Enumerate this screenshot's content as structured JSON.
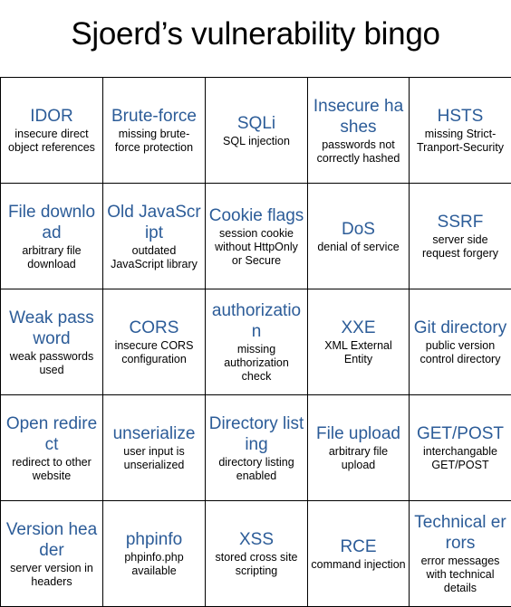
{
  "title": "Sjoerd’s vulnerability bingo",
  "colors": {
    "heading": "#2c5c98",
    "description": "#000000",
    "grid_lines": "#000000",
    "background": "#ffffff"
  },
  "cells": [
    {
      "heading": "IDOR",
      "description": "insecure direct object references"
    },
    {
      "heading": "Brute-force",
      "description": "missing brute-force protection"
    },
    {
      "heading": "SQLi",
      "description": "SQL injection"
    },
    {
      "heading": "Insecure hashes",
      "description": "passwords not correctly hashed"
    },
    {
      "heading": "HSTS",
      "description": "missing Strict-Tranport-Security"
    },
    {
      "heading": "File download",
      "description": "arbitrary file download"
    },
    {
      "heading": "Old JavaScript",
      "description": "outdated JavaScript library"
    },
    {
      "heading": "Cookie flags",
      "description": "session cookie without HttpOnly or Secure"
    },
    {
      "heading": "DoS",
      "description": "denial of service"
    },
    {
      "heading": "SSRF",
      "description": "server side request forgery"
    },
    {
      "heading": "Weak password",
      "description": "weak passwords used"
    },
    {
      "heading": "CORS",
      "description": "insecure CORS configuration"
    },
    {
      "heading": "authorization",
      "description": "missing authorization check"
    },
    {
      "heading": "XXE",
      "description": "XML External Entity"
    },
    {
      "heading": "Git directory",
      "description": "public version control directory"
    },
    {
      "heading": "Open redirect",
      "description": "redirect to other website"
    },
    {
      "heading": "unserialize",
      "description": "user input is unserialized"
    },
    {
      "heading": "Directory listing",
      "description": "directory listing enabled"
    },
    {
      "heading": "File upload",
      "description": "arbitrary file upload"
    },
    {
      "heading": "GET/POST",
      "description": "interchangable GET/POST"
    },
    {
      "heading": "Version header",
      "description": "server version in headers"
    },
    {
      "heading": "phpinfo",
      "description": "phpinfo.php available"
    },
    {
      "heading": "XSS",
      "description": "stored cross site scripting"
    },
    {
      "heading": "RCE",
      "description": "command injection"
    },
    {
      "heading": "Technical errors",
      "description": "error messages with technical details"
    }
  ]
}
